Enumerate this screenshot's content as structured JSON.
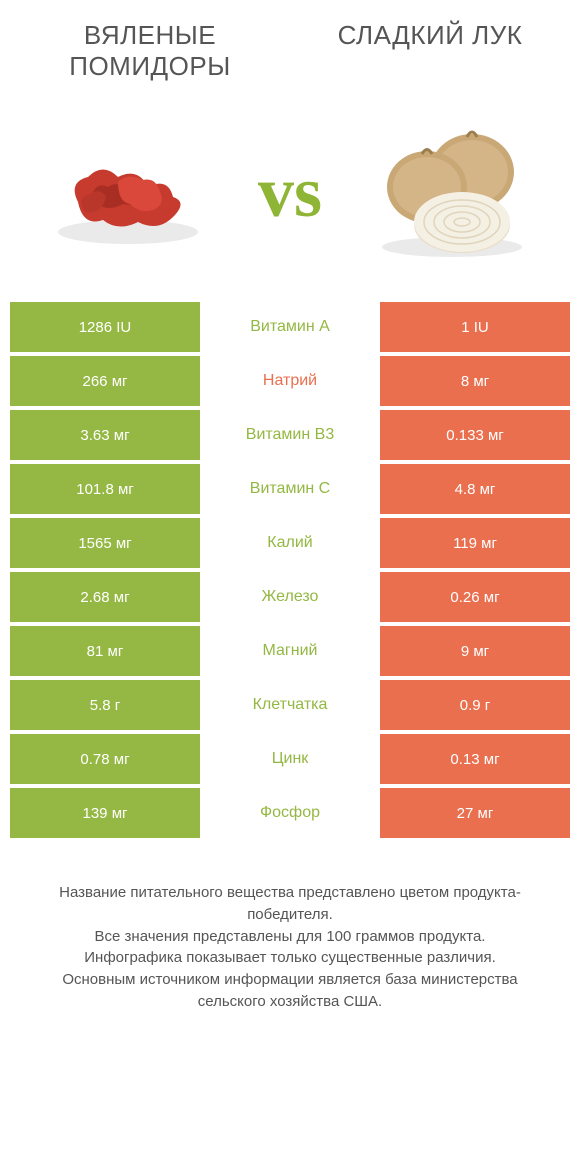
{
  "left_title": "ВЯЛЕНЫЕ ПОМИДОРЫ",
  "right_title": "СЛАДКИЙ ЛУК",
  "vs_text": "vs",
  "colors": {
    "green": "#94b843",
    "orange": "#e96f4f",
    "bg": "#ffffff",
    "text": "#555555"
  },
  "rows": [
    {
      "left": "1286 IU",
      "mid": "Витамин A",
      "right": "1 IU",
      "winner": "left"
    },
    {
      "left": "266 мг",
      "mid": "Натрий",
      "right": "8 мг",
      "winner": "right"
    },
    {
      "left": "3.63 мг",
      "mid": "Витамин B3",
      "right": "0.133 мг",
      "winner": "left"
    },
    {
      "left": "101.8 мг",
      "mid": "Витамин C",
      "right": "4.8 мг",
      "winner": "left"
    },
    {
      "left": "1565 мг",
      "mid": "Калий",
      "right": "119 мг",
      "winner": "left"
    },
    {
      "left": "2.68 мг",
      "mid": "Железо",
      "right": "0.26 мг",
      "winner": "left"
    },
    {
      "left": "81 мг",
      "mid": "Магний",
      "right": "9 мг",
      "winner": "left"
    },
    {
      "left": "5.8 г",
      "mid": "Клетчатка",
      "right": "0.9 г",
      "winner": "left"
    },
    {
      "left": "0.78 мг",
      "mid": "Цинк",
      "right": "0.13 мг",
      "winner": "left"
    },
    {
      "left": "139 мг",
      "mid": "Фосфор",
      "right": "27 мг",
      "winner": "left"
    }
  ],
  "footer_lines": [
    "Название питательного вещества представлено цветом продукта-победителя.",
    "Все значения представлены для 100 граммов продукта.",
    "Инфографика показывает только существенные различия.",
    "Основным источником информации является база министерства сельского хозяйства США."
  ]
}
